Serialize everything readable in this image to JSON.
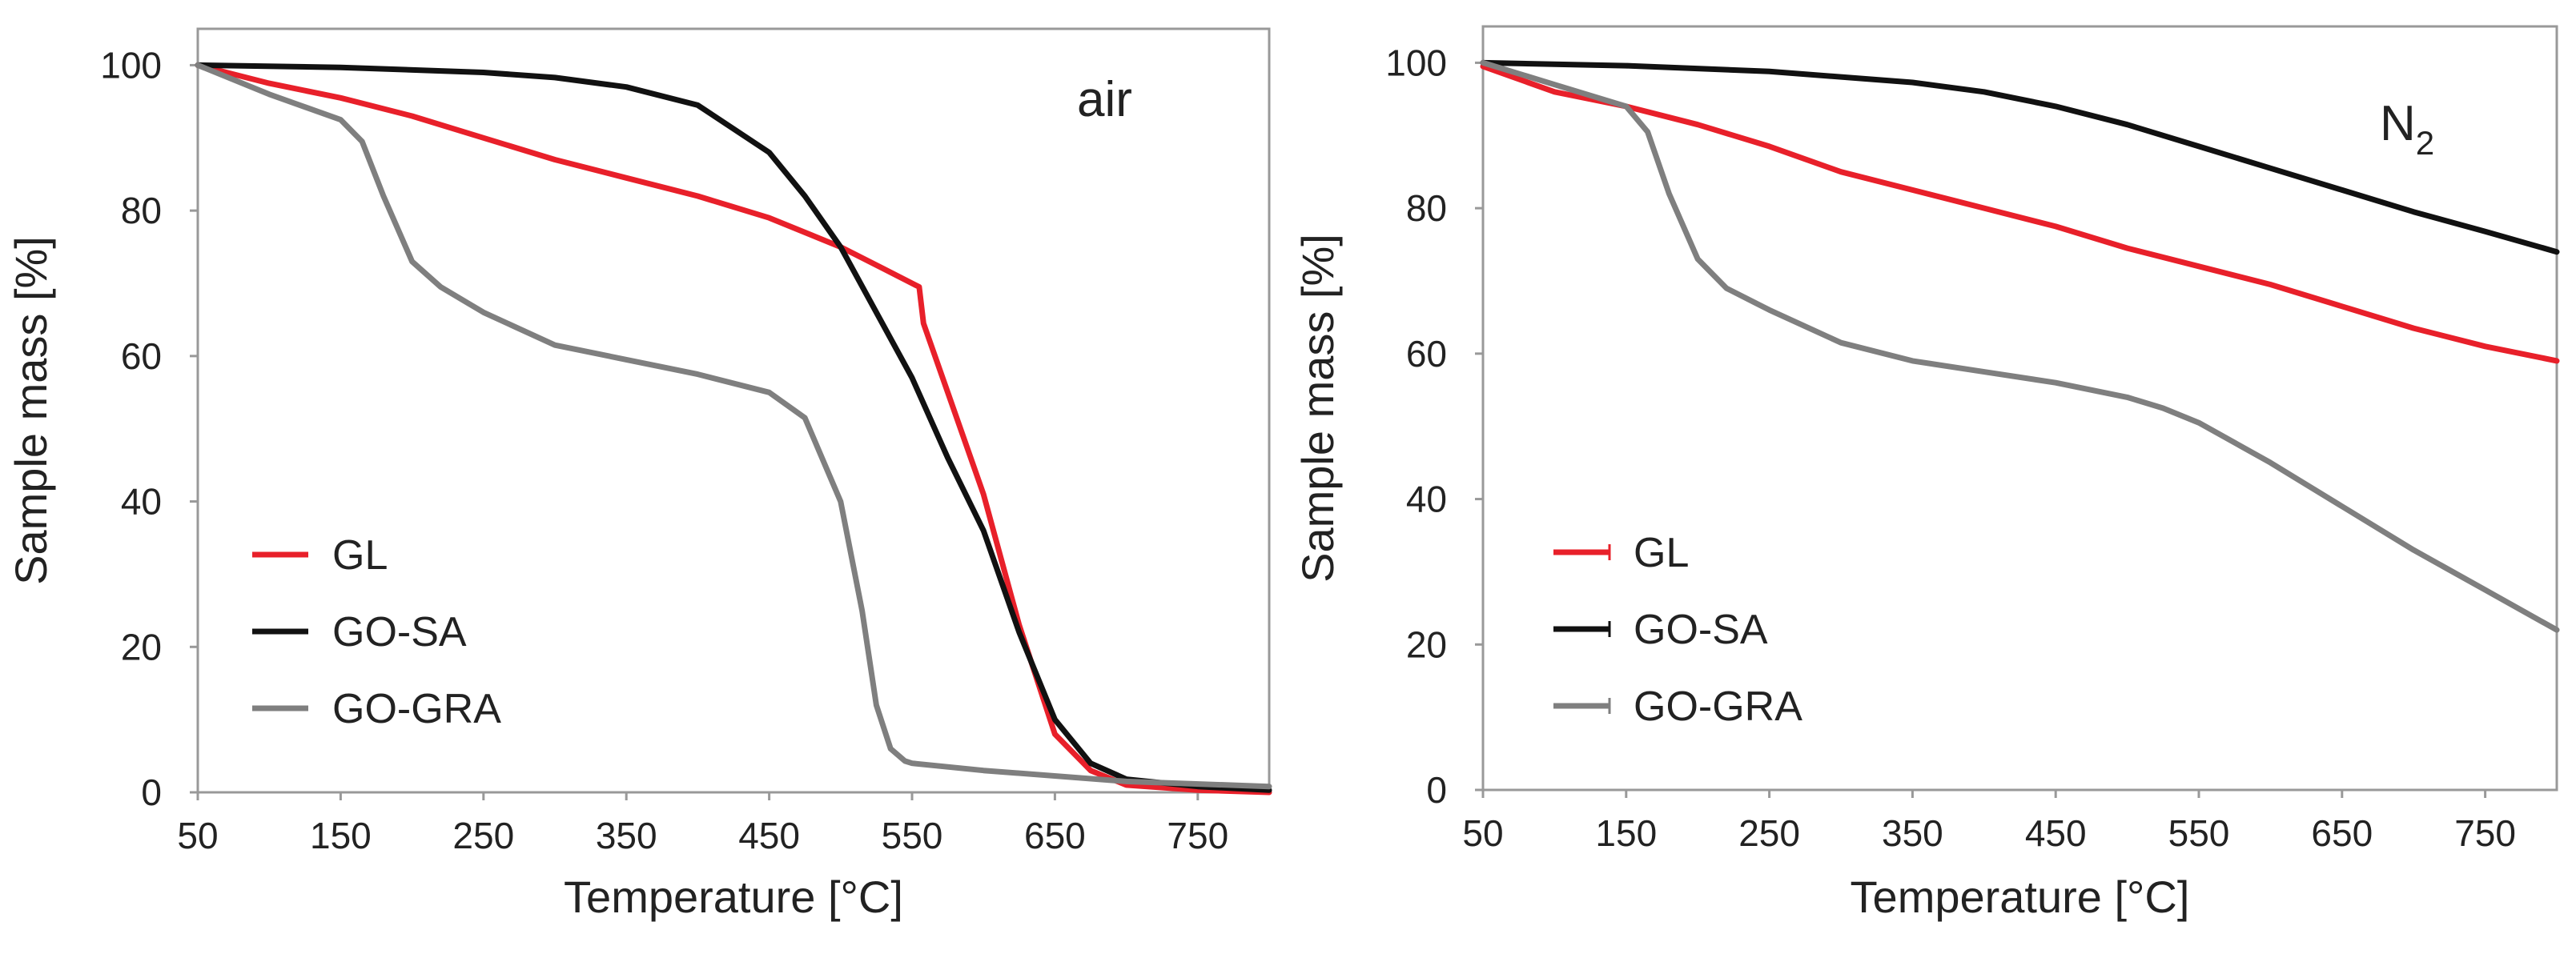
{
  "chart_data": [
    {
      "type": "line",
      "title": "",
      "annotation": "air",
      "annotation_sub": "",
      "xlabel": "Temperature [°C]",
      "ylabel": "Sample mass [%]",
      "xlim": [
        50,
        800
      ],
      "ylim": [
        0,
        105
      ],
      "xticks": [
        50,
        150,
        250,
        350,
        450,
        550,
        650,
        750
      ],
      "yticks": [
        0,
        20,
        40,
        60,
        80,
        100
      ],
      "grid": false,
      "legend_position": "bottom-left",
      "series": [
        {
          "name": "GL",
          "color": "#e8202a",
          "x": [
            50,
            100,
            150,
            200,
            250,
            300,
            350,
            400,
            450,
            500,
            530,
            555,
            558,
            575,
            600,
            625,
            650,
            675,
            700,
            750,
            800
          ],
          "y": [
            100,
            97.5,
            95.5,
            93,
            90,
            87,
            84.5,
            82,
            79,
            75,
            72,
            69.5,
            64.5,
            55,
            41,
            23,
            8,
            3,
            1,
            0.3,
            0
          ]
        },
        {
          "name": "GO-SA",
          "color": "#111111",
          "x": [
            50,
            150,
            250,
            300,
            350,
            400,
            450,
            475,
            500,
            525,
            550,
            575,
            600,
            625,
            650,
            675,
            700,
            750,
            800
          ],
          "y": [
            100,
            99.7,
            99,
            98.3,
            97,
            94.5,
            88,
            82,
            75,
            66,
            57,
            46,
            36,
            22,
            10,
            4,
            1.8,
            0.8,
            0.3
          ]
        },
        {
          "name": "GO-GRA",
          "color": "#7f7f7f",
          "x": [
            50,
            100,
            150,
            165,
            180,
            200,
            220,
            250,
            300,
            350,
            400,
            450,
            475,
            500,
            515,
            525,
            535,
            545,
            550,
            600,
            700,
            800
          ],
          "y": [
            100,
            96,
            92.5,
            89.5,
            82,
            73,
            69.5,
            66,
            61.5,
            59.5,
            57.5,
            55,
            51.5,
            40,
            25,
            12,
            6,
            4.3,
            4,
            3,
            1.5,
            0.8
          ]
        }
      ]
    },
    {
      "type": "line",
      "title": "",
      "annotation": "N",
      "annotation_sub": "2",
      "xlabel": "Temperature [°C]",
      "ylabel": "Sample mass [%]",
      "xlim": [
        50,
        800
      ],
      "ylim": [
        0,
        105
      ],
      "xticks": [
        50,
        150,
        250,
        350,
        450,
        550,
        650,
        750
      ],
      "yticks": [
        0,
        20,
        40,
        60,
        80,
        100
      ],
      "grid": false,
      "legend_position": "bottom-left",
      "series": [
        {
          "name": "GL",
          "color": "#e8202a",
          "x": [
            50,
            100,
            150,
            200,
            250,
            300,
            350,
            400,
            450,
            500,
            550,
            600,
            650,
            700,
            750,
            800
          ],
          "y": [
            99.5,
            96,
            94,
            91.5,
            88.5,
            85,
            82.5,
            80,
            77.5,
            74.5,
            72,
            69.5,
            66.5,
            63.5,
            61,
            59
          ]
        },
        {
          "name": "GO-SA",
          "color": "#111111",
          "x": [
            50,
            150,
            250,
            350,
            400,
            450,
            500,
            550,
            600,
            650,
            700,
            750,
            800
          ],
          "y": [
            100,
            99.6,
            98.8,
            97.3,
            96,
            94,
            91.5,
            88.5,
            85.5,
            82.5,
            79.5,
            76.8,
            74
          ]
        },
        {
          "name": "GO-GRA",
          "color": "#7f7f7f",
          "x": [
            50,
            100,
            150,
            165,
            180,
            200,
            220,
            250,
            300,
            350,
            400,
            450,
            500,
            525,
            550,
            600,
            650,
            700,
            750,
            800
          ],
          "y": [
            100,
            97,
            94,
            90.5,
            82,
            73,
            69,
            66,
            61.5,
            59,
            57.5,
            56,
            54,
            52.5,
            50.5,
            45,
            39,
            33,
            27.5,
            22
          ]
        }
      ]
    }
  ]
}
